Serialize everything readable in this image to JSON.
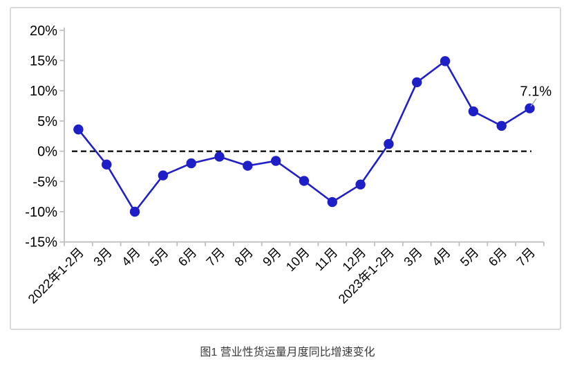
{
  "figure": {
    "caption": "图1 营业性货运量月度同比增速变化"
  },
  "chart_data": {
    "type": "line",
    "title": "",
    "xlabel": "",
    "ylabel": "",
    "categories": [
      "2022年1-2月",
      "3月",
      "4月",
      "5月",
      "6月",
      "7月",
      "8月",
      "9月",
      "10月",
      "11月",
      "12月",
      "2023年1-2月",
      "3月",
      "4月",
      "5月",
      "6月",
      "7月"
    ],
    "values": [
      3.6,
      -2.2,
      -10.0,
      -4.0,
      -2.0,
      -0.9,
      -2.4,
      -1.6,
      -4.9,
      -8.4,
      -5.5,
      1.2,
      11.4,
      14.9,
      6.6,
      4.2,
      7.1
    ],
    "ylim": [
      -15,
      20
    ],
    "yticks": [
      20,
      15,
      10,
      5,
      0,
      -5,
      -10,
      -15
    ],
    "ytick_labels": [
      "20%",
      "15%",
      "10%",
      "5%",
      "0%",
      "-5%",
      "-10%",
      "-15%"
    ],
    "xtick_rotation_deg": 45,
    "grid": false,
    "legend": "none",
    "zero_baseline_dashed": true,
    "annotation": {
      "text": "7.1%",
      "index": 16
    },
    "colors": {
      "line": "#1F1FC8",
      "marker": "#1F1FC8",
      "zero_line": "#000000",
      "axis": "#BFBFBF",
      "leader": "#A6A6A6",
      "card_border": "#D9D9D9"
    }
  }
}
